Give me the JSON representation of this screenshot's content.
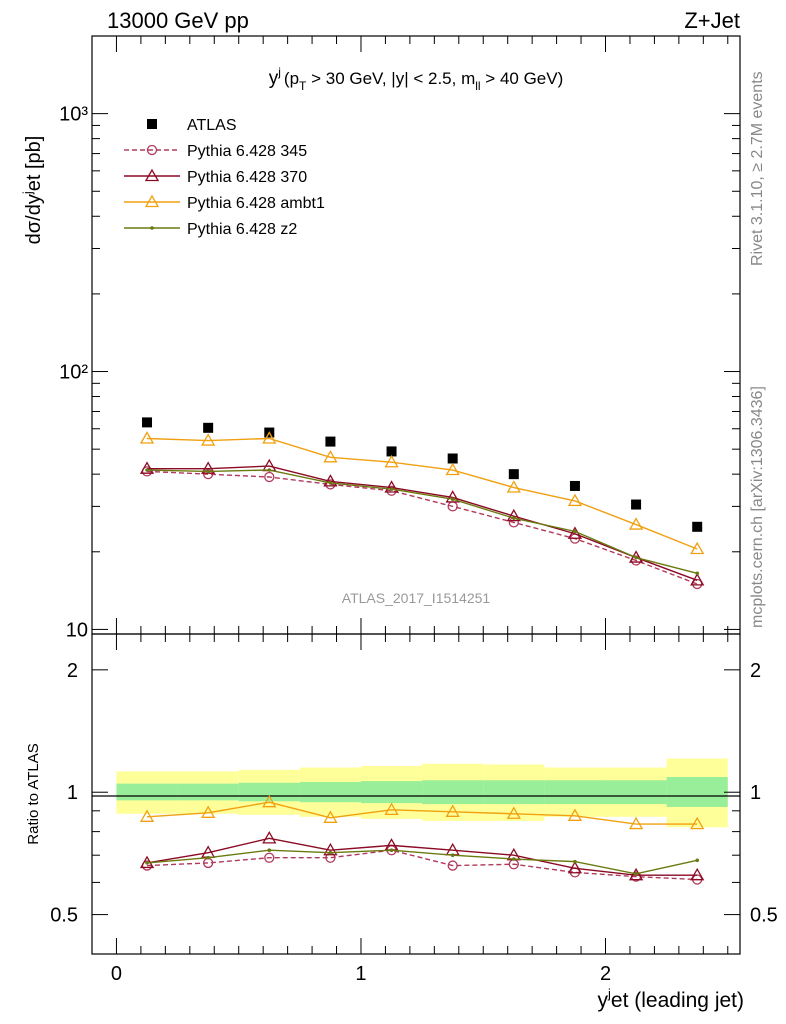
{
  "header": {
    "left": "13000 GeV pp",
    "right": "Z+Jet"
  },
  "side_labels": {
    "rivet": "Rivet 3.1.10, ≥ 2.7M events",
    "mcplots": "mcplots.cern.ch [arXiv:1306.3436]"
  },
  "chart_data": [
    {
      "type": "line",
      "panel": "main",
      "title": "y^j (p_T > 30 GeV, |y| < 2.5, m_ll > 40 GeV)",
      "title_parts": {
        "var": "y",
        "var_sup": "j",
        "pre": "(p",
        "pt_sub": "T",
        "mid": " > 30 GeV, |y| < 2.5, m",
        "m_sub": "ll",
        "post": " > 40 GeV)"
      },
      "ylabel": "dσ/dy^jet [pb]",
      "ylabel_parts": {
        "pre": "dσ/dy",
        "sup": "j",
        "post": "et [pb]"
      },
      "yscale": "log",
      "xlim": [
        -0.1,
        2.55
      ],
      "ylim": [
        9.6,
        2000
      ],
      "y_tick_labels": [
        "10",
        "10²",
        "10³"
      ],
      "watermark": "ATLAS_2017_I1514251",
      "legend_position": "top-left",
      "x": [
        0.125,
        0.375,
        0.625,
        0.875,
        1.125,
        1.375,
        1.625,
        1.875,
        2.125,
        2.375
      ],
      "series": [
        {
          "name": "ATLAS",
          "color": "#000000",
          "marker": "square",
          "values": [
            63.5,
            60.5,
            58,
            53.5,
            49,
            46,
            40,
            36,
            30.5,
            25
          ]
        },
        {
          "name": "Pythia 6.428 345",
          "color": "#b03a5b",
          "marker": "circle-open",
          "dashed": true,
          "values": [
            41,
            40,
            39,
            36.5,
            34.5,
            30,
            26,
            22.5,
            18.5,
            15
          ]
        },
        {
          "name": "Pythia 6.428 370",
          "color": "#8b0a24",
          "marker": "triangle-open",
          "dashed": false,
          "values": [
            42,
            42,
            43,
            37.5,
            35.5,
            32.5,
            27.5,
            23.5,
            19,
            15.5
          ]
        },
        {
          "name": "Pythia 6.428 ambt1",
          "color": "#f0a010",
          "marker": "triangle-open",
          "dashed": false,
          "values": [
            55,
            54,
            55,
            46.5,
            44.5,
            41.5,
            35.5,
            31.5,
            25.5,
            20.5
          ]
        },
        {
          "name": "Pythia 6.428 z2",
          "color": "#6b7a10",
          "marker": "dot",
          "dashed": false,
          "values": [
            41.5,
            41,
            41.5,
            37,
            35,
            32,
            27,
            24,
            19,
            16.5
          ]
        }
      ]
    },
    {
      "type": "line",
      "panel": "ratio",
      "ylabel": "Ratio to ATLAS",
      "xlabel": "y^jet (leading jet)",
      "xlabel_parts": {
        "pre": "y",
        "sup": "j",
        "post": "et (leading jet)"
      },
      "yscale": "log",
      "xlim": [
        -0.1,
        2.55
      ],
      "ylim": [
        0.4,
        2.45
      ],
      "x_ticks": [
        0,
        1,
        2
      ],
      "y_ticks": [
        0.5,
        1,
        2
      ],
      "y_tick_labels": [
        "0.5",
        "1",
        "2"
      ],
      "x": [
        0.125,
        0.375,
        0.625,
        0.875,
        1.125,
        1.375,
        1.625,
        1.875,
        2.125,
        2.375
      ],
      "bins": [
        0,
        0.25,
        0.5,
        0.75,
        1.0,
        1.25,
        1.5,
        1.75,
        2.0,
        2.25,
        2.5
      ],
      "band_inner": [
        [
          0.955,
          1.05
        ],
        [
          0.955,
          1.05
        ],
        [
          0.95,
          1.055
        ],
        [
          0.945,
          1.06
        ],
        [
          0.94,
          1.065
        ],
        [
          0.935,
          1.07
        ],
        [
          0.935,
          1.07
        ],
        [
          0.935,
          1.07
        ],
        [
          0.935,
          1.07
        ],
        [
          0.92,
          1.09
        ]
      ],
      "band_outer": [
        [
          0.885,
          1.125
        ],
        [
          0.885,
          1.125
        ],
        [
          0.88,
          1.135
        ],
        [
          0.87,
          1.15
        ],
        [
          0.86,
          1.16
        ],
        [
          0.85,
          1.175
        ],
        [
          0.85,
          1.17
        ],
        [
          0.87,
          1.15
        ],
        [
          0.87,
          1.15
        ],
        [
          0.82,
          1.21
        ]
      ],
      "series": [
        {
          "name": "Pythia 6.428 345",
          "color": "#b03a5b",
          "marker": "circle-open",
          "dashed": true,
          "values": [
            0.66,
            0.67,
            0.69,
            0.69,
            0.72,
            0.66,
            0.665,
            0.635,
            0.62,
            0.61
          ]
        },
        {
          "name": "Pythia 6.428 370",
          "color": "#8b0a24",
          "marker": "triangle-open",
          "dashed": false,
          "values": [
            0.67,
            0.71,
            0.77,
            0.72,
            0.74,
            0.72,
            0.7,
            0.65,
            0.625,
            0.625
          ]
        },
        {
          "name": "Pythia 6.428 ambt1",
          "color": "#f0a010",
          "marker": "triangle-open",
          "dashed": false,
          "values": [
            0.87,
            0.89,
            0.945,
            0.865,
            0.905,
            0.895,
            0.885,
            0.875,
            0.835,
            0.835
          ]
        },
        {
          "name": "Pythia 6.428 z2",
          "color": "#6b7a10",
          "marker": "dot",
          "dashed": false,
          "values": [
            0.67,
            0.69,
            0.72,
            0.71,
            0.72,
            0.7,
            0.685,
            0.675,
            0.63,
            0.68
          ]
        }
      ]
    }
  ]
}
